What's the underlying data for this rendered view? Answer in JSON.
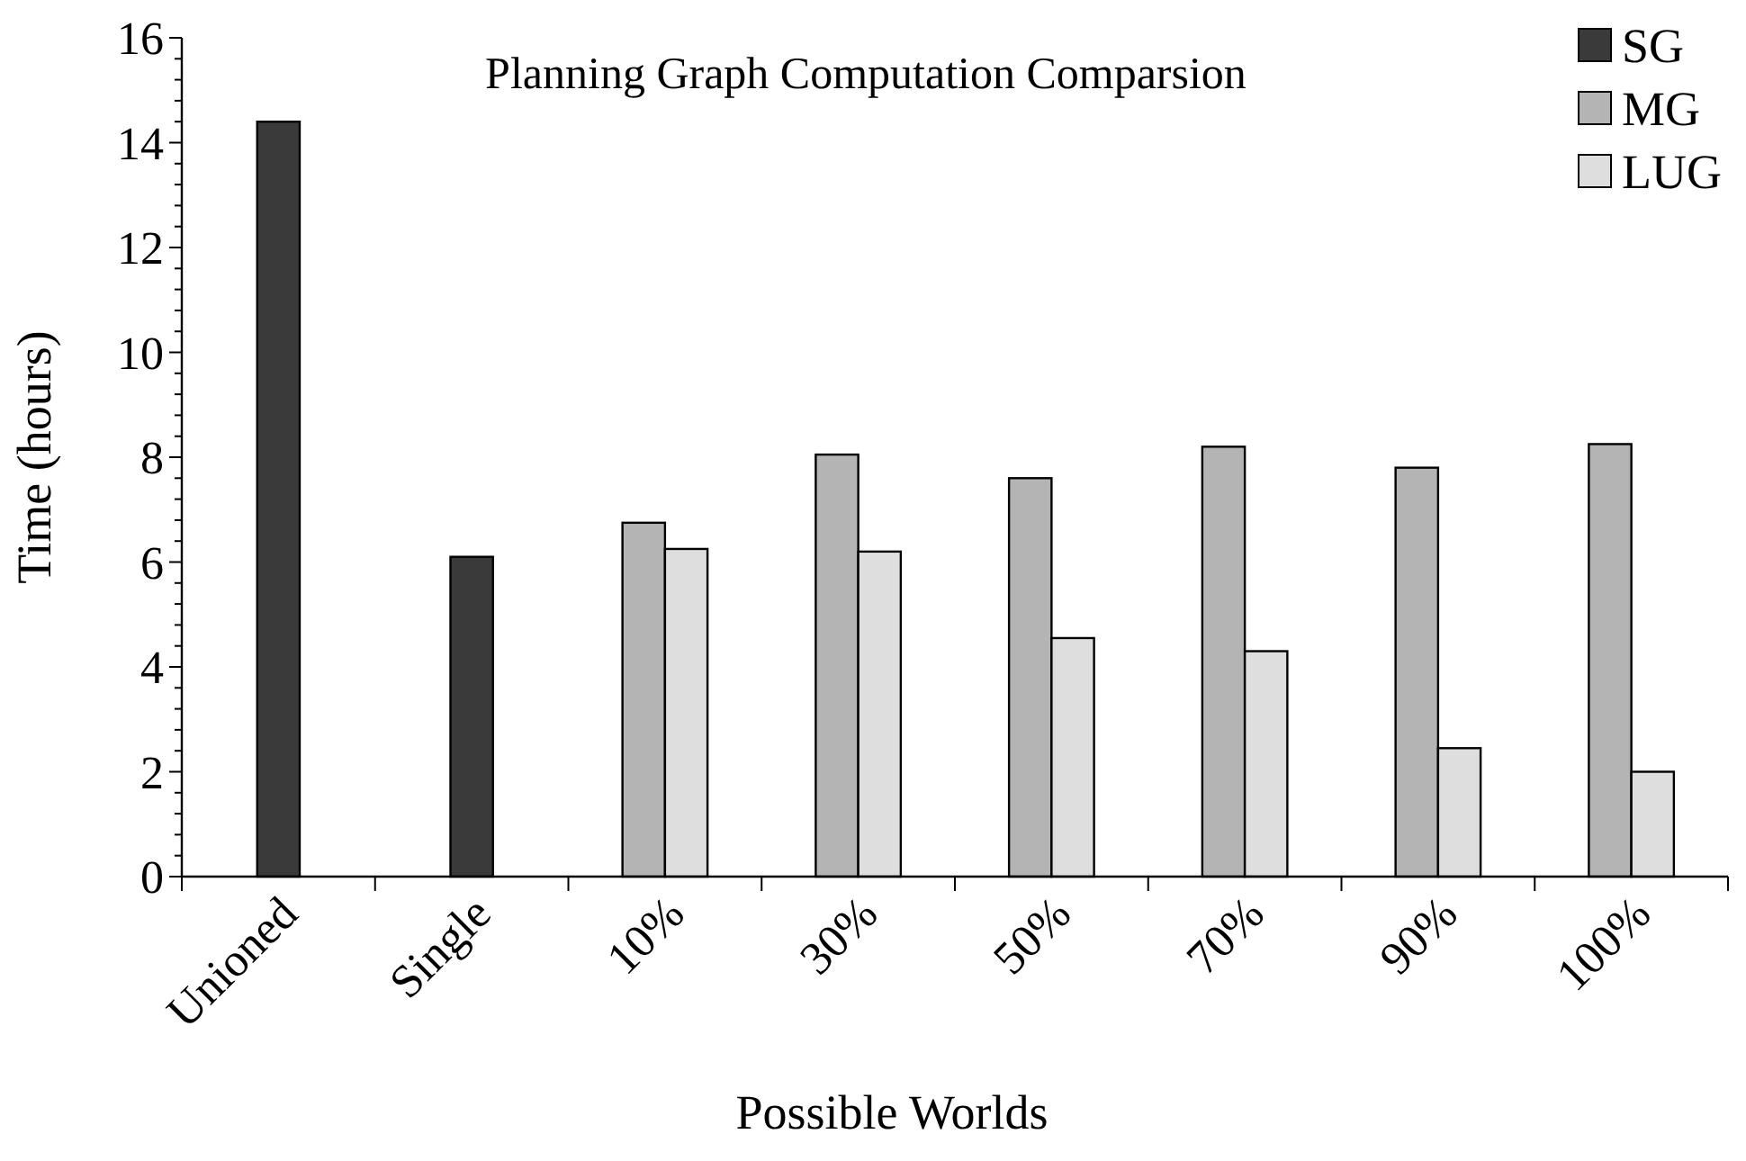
{
  "chart_data": {
    "type": "bar",
    "title": "Planning Graph Computation Comparsion",
    "xlabel": "Possible Worlds",
    "ylabel": "Time (hours)",
    "categories": [
      "Unioned",
      "Single",
      "10%",
      "30%",
      "50%",
      "70%",
      "90%",
      "100%"
    ],
    "series": [
      {
        "name": "SG",
        "color": "#3a3a3a",
        "values": [
          14.4,
          6.1,
          null,
          null,
          null,
          null,
          null,
          null
        ]
      },
      {
        "name": "MG",
        "color": "#b4b4b4",
        "values": [
          null,
          null,
          6.75,
          8.05,
          7.6,
          8.2,
          7.8,
          8.25
        ]
      },
      {
        "name": "LUG",
        "color": "#dedede",
        "values": [
          null,
          null,
          6.25,
          6.2,
          4.55,
          4.3,
          2.45,
          2.0
        ]
      }
    ],
    "ylim": [
      0,
      16
    ],
    "yticks": [
      0,
      {
        "value": 0.4,
        "label": null
      },
      {
        "value": 0.8,
        "label": null
      },
      {
        "value": 1.2,
        "label": null
      },
      {
        "value": 1.6,
        "label": null
      },
      2,
      {
        "value": 2.4,
        "label": null
      },
      {
        "value": 2.8,
        "label": null
      },
      {
        "value": 3.2,
        "label": null
      },
      {
        "value": 3.6,
        "label": null
      },
      4,
      {
        "value": 4.4,
        "label": null
      },
      {
        "value": 4.8,
        "label": null
      },
      {
        "value": 5.2,
        "label": null
      },
      {
        "value": 5.6,
        "label": null
      },
      6,
      {
        "value": 6.4,
        "label": null
      },
      {
        "value": 6.8,
        "label": null
      },
      {
        "value": 7.2,
        "label": null
      },
      {
        "value": 7.6,
        "label": null
      },
      8,
      {
        "value": 8.4,
        "label": null
      },
      {
        "value": 8.8,
        "label": null
      },
      {
        "value": 9.2,
        "label": null
      },
      {
        "value": 9.6,
        "label": null
      },
      10,
      {
        "value": 10.4,
        "label": null
      },
      {
        "value": 10.8,
        "label": null
      },
      {
        "value": 11.2,
        "label": null
      },
      {
        "value": 11.6,
        "label": null
      },
      12,
      {
        "value": 12.4,
        "label": null
      },
      {
        "value": 12.8,
        "label": null
      },
      {
        "value": 13.2,
        "label": null
      },
      {
        "value": 13.6,
        "label": null
      },
      14,
      {
        "value": 14.4,
        "label": null
      },
      {
        "value": 14.8,
        "label": null
      },
      {
        "value": 15.2,
        "label": null
      },
      {
        "value": 15.6,
        "label": null
      },
      16
    ],
    "legend": "top right"
  }
}
